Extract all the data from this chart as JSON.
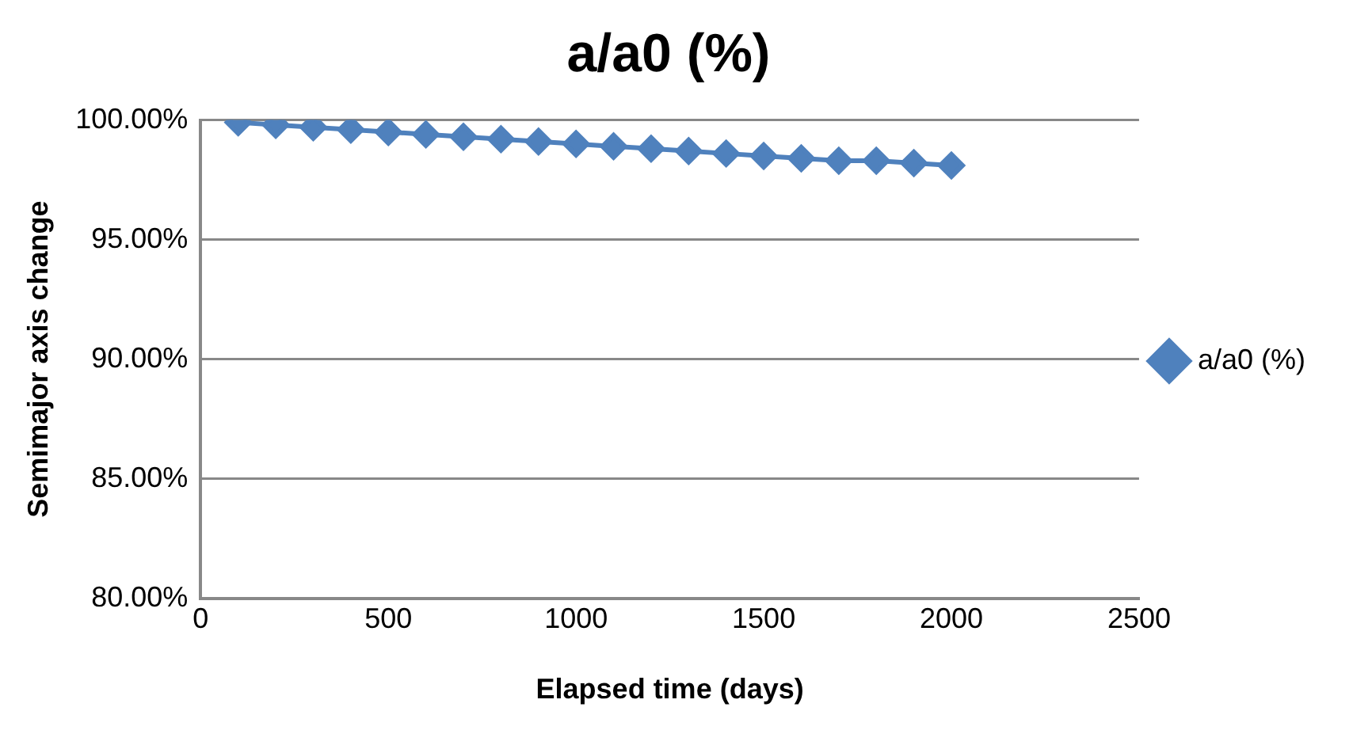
{
  "chart_data": {
    "type": "line",
    "title": "a/a0 (%)",
    "xlabel": "Elapsed time (days)",
    "ylabel": "Semimajor axis change",
    "x": [
      100,
      200,
      300,
      400,
      500,
      600,
      700,
      800,
      900,
      1000,
      1100,
      1200,
      1300,
      1400,
      1500,
      1600,
      1700,
      1800,
      1900,
      2000
    ],
    "series": [
      {
        "name": "a/a0 (%)",
        "color": "#4f81bd",
        "values": [
          99.9,
          99.8,
          99.7,
          99.6,
          99.5,
          99.4,
          99.3,
          99.2,
          99.1,
          99.0,
          98.9,
          98.8,
          98.7,
          98.6,
          98.5,
          98.4,
          98.3,
          98.3,
          98.2,
          98.1
        ]
      }
    ],
    "xlim": [
      0,
      2500
    ],
    "xticks": [
      0,
      500,
      1000,
      1500,
      2000,
      2500
    ],
    "ylim": [
      80,
      100
    ],
    "yticks": [
      {
        "value": 80,
        "label": "80.00%"
      },
      {
        "value": 85,
        "label": "85.00%"
      },
      {
        "value": 90,
        "label": "90.00%"
      },
      {
        "value": 95,
        "label": "95.00%"
      },
      {
        "value": 100,
        "label": "100.00%"
      }
    ],
    "grid": "y",
    "legend": "right",
    "marker": "diamond",
    "line_style": "solid"
  }
}
